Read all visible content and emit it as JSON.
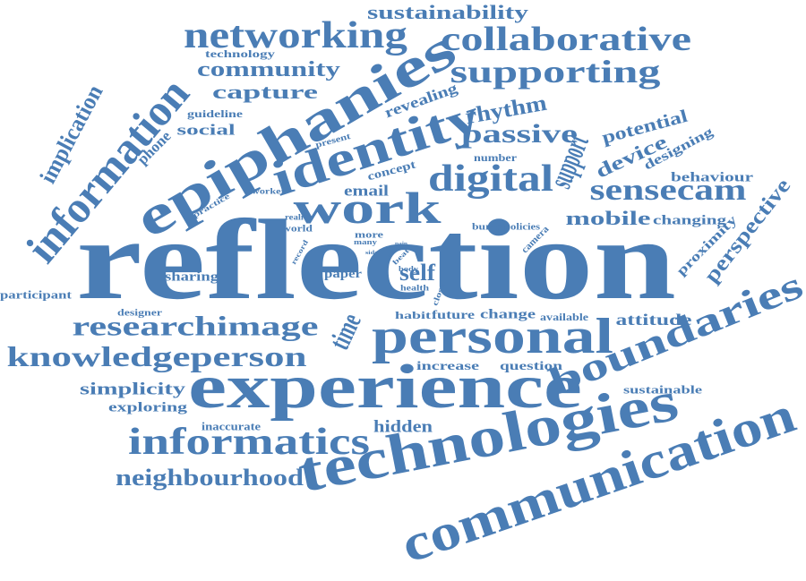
{
  "style": {
    "word_color": "#4A7DB5",
    "background": "#FFFFFF"
  },
  "words": [
    {
      "text": "reflection"
    },
    {
      "text": "experience"
    },
    {
      "text": "technologies"
    },
    {
      "text": "communication"
    },
    {
      "text": "epiphanies"
    },
    {
      "text": "personal"
    },
    {
      "text": "identity"
    },
    {
      "text": "information"
    },
    {
      "text": "informatics"
    },
    {
      "text": "boundaries"
    },
    {
      "text": "work"
    },
    {
      "text": "networking"
    },
    {
      "text": "collaborative"
    },
    {
      "text": "supporting"
    },
    {
      "text": "knowledgeperson"
    },
    {
      "text": "researchimage"
    },
    {
      "text": "digital"
    },
    {
      "text": "neighbourhood"
    },
    {
      "text": "support"
    },
    {
      "text": "sensecam"
    },
    {
      "text": "time"
    },
    {
      "text": "passive"
    },
    {
      "text": "sustainability"
    },
    {
      "text": "implication"
    },
    {
      "text": "community"
    },
    {
      "text": "capture"
    },
    {
      "text": "perspective"
    },
    {
      "text": "rhythm"
    },
    {
      "text": "self"
    },
    {
      "text": "mobile"
    },
    {
      "text": "device"
    },
    {
      "text": "potential"
    },
    {
      "text": "attitude"
    },
    {
      "text": "simplicity"
    },
    {
      "text": "hidden"
    },
    {
      "text": "email"
    },
    {
      "text": "social"
    },
    {
      "text": "phone"
    },
    {
      "text": "exploring"
    },
    {
      "text": "proximity"
    },
    {
      "text": "behaviour"
    },
    {
      "text": "revealing"
    },
    {
      "text": "designing"
    },
    {
      "text": "changing"
    },
    {
      "text": "sharing"
    },
    {
      "text": "paper"
    },
    {
      "text": "change"
    },
    {
      "text": "future"
    },
    {
      "text": "participant"
    },
    {
      "text": "inaccurate"
    },
    {
      "text": "sustainable"
    },
    {
      "text": "increase"
    },
    {
      "text": "question"
    },
    {
      "text": "available"
    },
    {
      "text": "habit"
    },
    {
      "text": "concept"
    },
    {
      "text": "technology"
    },
    {
      "text": "guideline"
    },
    {
      "text": "number"
    },
    {
      "text": "bump"
    },
    {
      "text": "policies"
    },
    {
      "text": "camera"
    },
    {
      "text": "world"
    },
    {
      "text": "designer"
    },
    {
      "text": "more"
    },
    {
      "text": "present"
    },
    {
      "text": "practice"
    },
    {
      "text": "worker"
    },
    {
      "text": "reality"
    },
    {
      "text": "record"
    },
    {
      "text": "many"
    },
    {
      "text": "beat"
    },
    {
      "text": "body"
    },
    {
      "text": "health"
    },
    {
      "text": "close"
    },
    {
      "text": "pain"
    },
    {
      "text": "side"
    },
    {
      "text": "pale"
    }
  ]
}
